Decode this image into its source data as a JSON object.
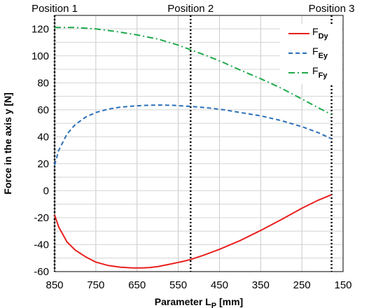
{
  "chart_data": {
    "type": "line",
    "xlabel": "Parameter Lp [mm]",
    "xlabel_main": "Parameter L",
    "xlabel_sub": "P",
    "xlabel_unit": " [mm]",
    "ylabel": "Force in the axis  y [N]",
    "xlim": [
      850,
      150
    ],
    "ylim": [
      -60,
      130
    ],
    "x_ticks": [
      850,
      750,
      650,
      550,
      450,
      350,
      250,
      150
    ],
    "y_ticks": [
      120,
      100,
      80,
      60,
      40,
      20,
      0,
      -20,
      -40,
      -60
    ],
    "grid": true,
    "legend_position": "top-right",
    "positions": [
      {
        "label": "Position 1",
        "x": 850
      },
      {
        "label": "Position 2",
        "x": 520
      },
      {
        "label": "Position 3",
        "x": 178
      }
    ],
    "series": [
      {
        "name": "FDy",
        "name_main": "F",
        "name_sub": "Dy",
        "color": "#e8201e",
        "dash": "solid",
        "x": [
          850,
          840,
          820,
          800,
          775,
          750,
          720,
          690,
          660,
          640,
          620,
          600,
          570,
          540,
          520,
          490,
          450,
          400,
          350,
          300,
          250,
          210,
          178
        ],
        "y": [
          -18,
          -27,
          -38,
          -44,
          -49,
          -53,
          -55.5,
          -56.8,
          -57.3,
          -57.3,
          -57,
          -56.3,
          -54.5,
          -52.5,
          -51,
          -48,
          -43.5,
          -37,
          -29.5,
          -21.5,
          -13,
          -7,
          -3
        ]
      },
      {
        "name": "FEy",
        "name_main": "F",
        "name_sub": "Ey",
        "color": "#2a6fb8",
        "dash": "dash",
        "x": [
          850,
          840,
          820,
          800,
          775,
          750,
          720,
          690,
          650,
          620,
          590,
          560,
          520,
          480,
          440,
          400,
          350,
          300,
          250,
          210,
          178
        ],
        "y": [
          19,
          30,
          42,
          49,
          54.5,
          58,
          60.5,
          62,
          63,
          63.4,
          63.5,
          63.3,
          62.5,
          61.5,
          60,
          58,
          55.5,
          52,
          47.5,
          43,
          38.5
        ]
      },
      {
        "name": "FFy",
        "name_main": "F",
        "name_sub": "Fy",
        "color": "#1ea94a",
        "dash": "dashdot",
        "x": [
          850,
          800,
          750,
          700,
          650,
          600,
          550,
          520,
          480,
          440,
          400,
          350,
          300,
          250,
          210,
          178
        ],
        "y": [
          121,
          121,
          120,
          118,
          115.5,
          112.5,
          108,
          104.5,
          100,
          95,
          89.5,
          83,
          76,
          68,
          61.5,
          56.5
        ]
      }
    ]
  }
}
